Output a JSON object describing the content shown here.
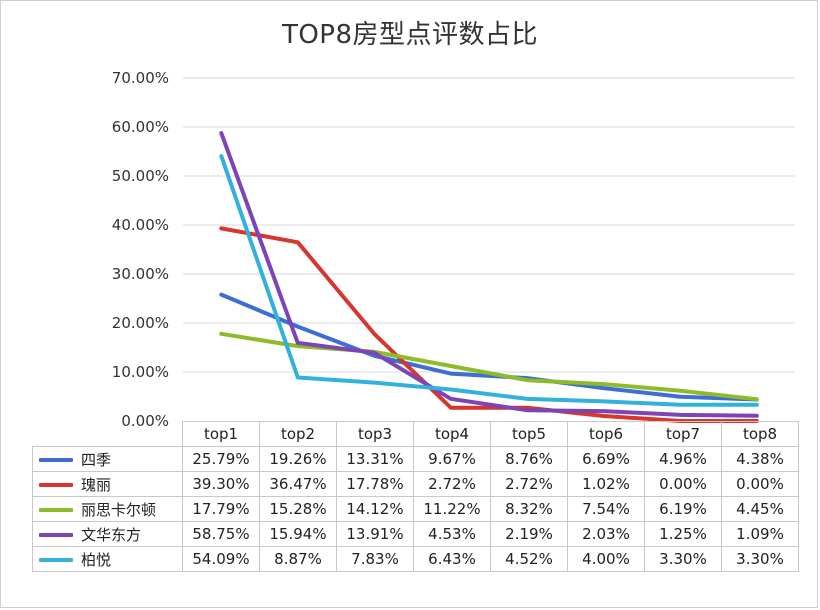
{
  "chart_data": {
    "type": "line",
    "title": "TOP8房型点评数占比",
    "categories": [
      "top1",
      "top2",
      "top3",
      "top4",
      "top5",
      "top6",
      "top7",
      "top8"
    ],
    "ylim": [
      0,
      70
    ],
    "yticks": [
      "0.00%",
      "10.00%",
      "20.00%",
      "30.00%",
      "40.00%",
      "50.00%",
      "60.00%",
      "70.00%"
    ],
    "grid": true,
    "legend": "data-table",
    "series": [
      {
        "name": "四季",
        "color": "#3c6fd1",
        "values": [
          25.79,
          19.26,
          13.31,
          9.67,
          8.76,
          6.69,
          4.96,
          4.38
        ],
        "labels": [
          "25.79%",
          "19.26%",
          "13.31%",
          "9.67%",
          "8.76%",
          "6.69%",
          "4.96%",
          "4.38%"
        ]
      },
      {
        "name": "瑰丽",
        "color": "#d6362b",
        "values": [
          39.3,
          36.47,
          17.78,
          2.72,
          2.72,
          1.02,
          0.0,
          0.0
        ],
        "labels": [
          "39.30%",
          "36.47%",
          "17.78%",
          "2.72%",
          "2.72%",
          "1.02%",
          "0.00%",
          "0.00%"
        ]
      },
      {
        "name": "丽思卡尔顿",
        "color": "#8dbb2a",
        "values": [
          17.79,
          15.28,
          14.12,
          11.22,
          8.32,
          7.54,
          6.19,
          4.45
        ],
        "labels": [
          "17.79%",
          "15.28%",
          "14.12%",
          "11.22%",
          "8.32%",
          "7.54%",
          "6.19%",
          "4.45%"
        ]
      },
      {
        "name": "文华东方",
        "color": "#7d44b8",
        "values": [
          58.75,
          15.94,
          13.91,
          4.53,
          2.19,
          2.03,
          1.25,
          1.09
        ],
        "labels": [
          "58.75%",
          "15.94%",
          "13.91%",
          "4.53%",
          "2.19%",
          "2.03%",
          "1.25%",
          "1.09%"
        ]
      },
      {
        "name": "柏悦",
        "color": "#32b1dd",
        "values": [
          54.09,
          8.87,
          7.83,
          6.43,
          4.52,
          4.0,
          3.3,
          3.3
        ],
        "labels": [
          "54.09%",
          "8.87%",
          "7.83%",
          "6.43%",
          "4.52%",
          "4.00%",
          "3.30%",
          "3.30%"
        ]
      }
    ]
  }
}
